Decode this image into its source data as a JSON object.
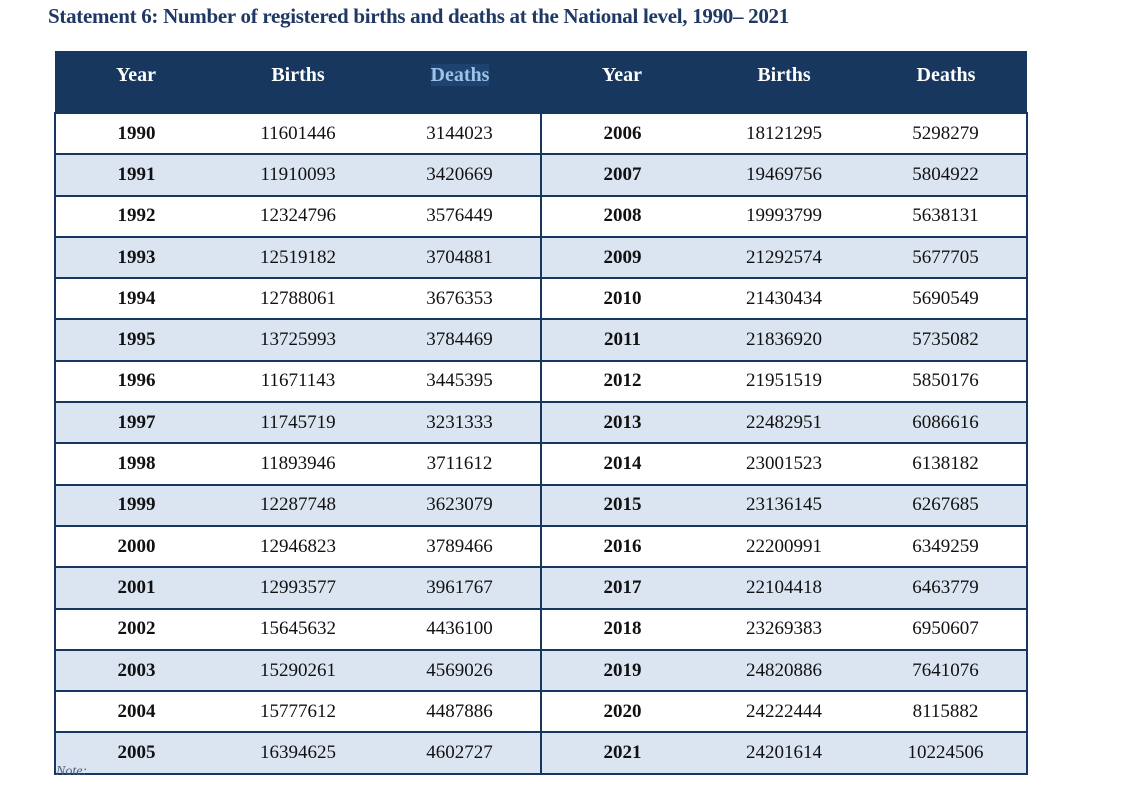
{
  "title": "Statement 6: Number of registered births and deaths at the National level, 1990– 2021",
  "columns": [
    "Year",
    "Births",
    "Deaths",
    "Year",
    "Births",
    "Deaths"
  ],
  "colors": {
    "header_bg": "#17375e",
    "stripe": "#dbe5f1",
    "title": "#1f3864"
  },
  "rows": [
    {
      "left": [
        "1990",
        "11601446",
        "3144023"
      ],
      "right": [
        "2006",
        "18121295",
        "5298279"
      ]
    },
    {
      "left": [
        "1991",
        "11910093",
        "3420669"
      ],
      "right": [
        "2007",
        "19469756",
        "5804922"
      ]
    },
    {
      "left": [
        "1992",
        "12324796",
        "3576449"
      ],
      "right": [
        "2008",
        "19993799",
        "5638131"
      ]
    },
    {
      "left": [
        "1993",
        "12519182",
        "3704881"
      ],
      "right": [
        "2009",
        "21292574",
        "5677705"
      ]
    },
    {
      "left": [
        "1994",
        "12788061",
        "3676353"
      ],
      "right": [
        "2010",
        "21430434",
        "5690549"
      ]
    },
    {
      "left": [
        "1995",
        "13725993",
        "3784469"
      ],
      "right": [
        "2011",
        "21836920",
        "5735082"
      ]
    },
    {
      "left": [
        "1996",
        "11671143",
        "3445395"
      ],
      "right": [
        "2012",
        "21951519",
        "5850176"
      ]
    },
    {
      "left": [
        "1997",
        "11745719",
        "3231333"
      ],
      "right": [
        "2013",
        "22482951",
        "6086616"
      ]
    },
    {
      "left": [
        "1998",
        "11893946",
        "3711612"
      ],
      "right": [
        "2014",
        "23001523",
        "6138182"
      ]
    },
    {
      "left": [
        "1999",
        "12287748",
        "3623079"
      ],
      "right": [
        "2015",
        "23136145",
        "6267685"
      ]
    },
    {
      "left": [
        "2000",
        "12946823",
        "3789466"
      ],
      "right": [
        "2016",
        "22200991",
        "6349259"
      ]
    },
    {
      "left": [
        "2001",
        "12993577",
        "3961767"
      ],
      "right": [
        "2017",
        "22104418",
        "6463779"
      ]
    },
    {
      "left": [
        "2002",
        "15645632",
        "4436100"
      ],
      "right": [
        "2018",
        "23269383",
        "6950607"
      ]
    },
    {
      "left": [
        "2003",
        "15290261",
        "4569026"
      ],
      "right": [
        "2019",
        "24820886",
        "7641076"
      ]
    },
    {
      "left": [
        "2004",
        "15777612",
        "4487886"
      ],
      "right": [
        "2020",
        "24222444",
        "8115882"
      ]
    },
    {
      "left": [
        "2005",
        "16394625",
        "4602727"
      ],
      "right": [
        "2021",
        "24201614",
        "10224506"
      ]
    }
  ],
  "note": "Note:"
}
